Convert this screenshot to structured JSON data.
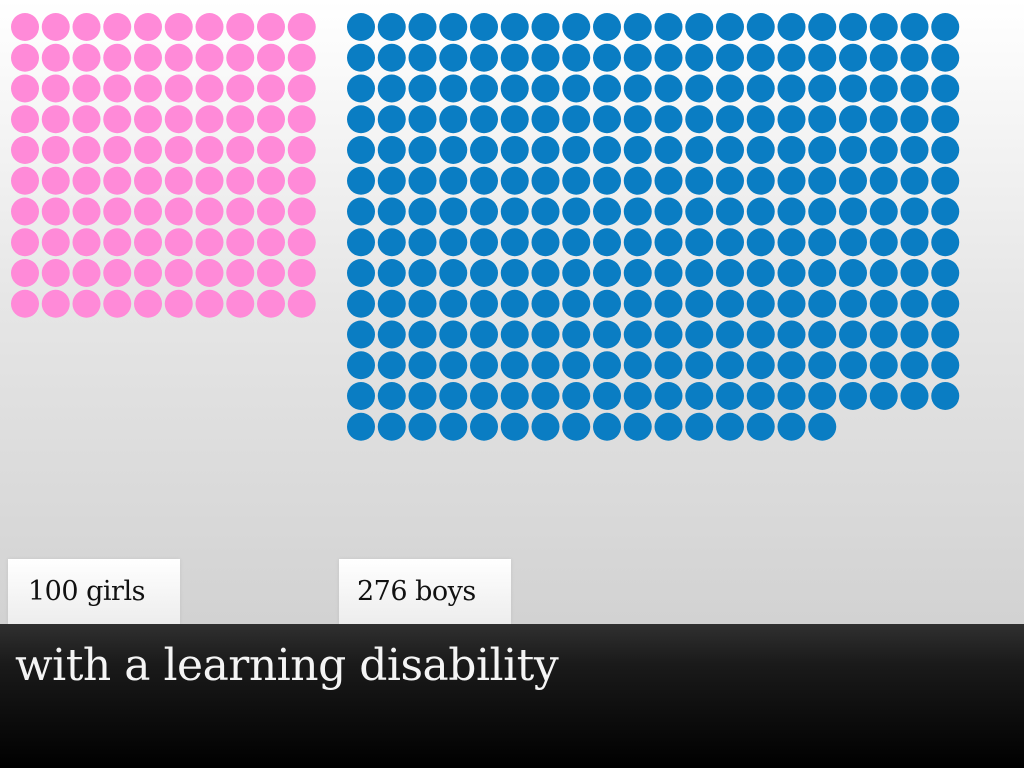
{
  "chart_data": {
    "type": "waffle",
    "series": [
      {
        "name": "girls",
        "value": 100,
        "label": "100 girls",
        "color": "#ff8ad8",
        "columns": 10
      },
      {
        "name": "boys",
        "value": 276,
        "label": "276 boys",
        "color": "#0a7dc3",
        "columns": 20
      }
    ],
    "caption": "with a learning disability"
  }
}
